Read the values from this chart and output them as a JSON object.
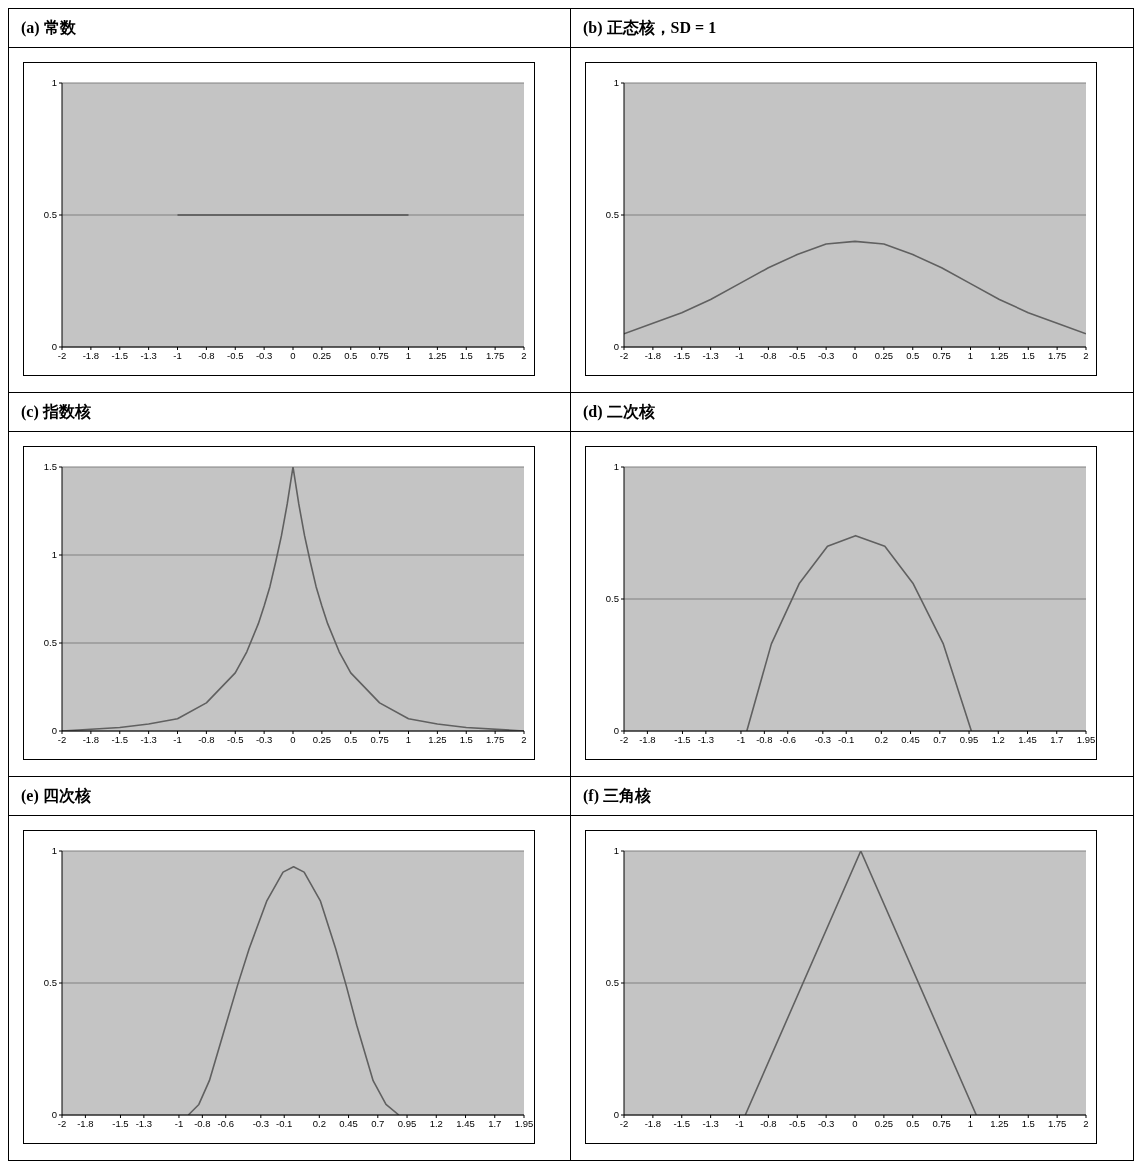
{
  "chart_data": [
    {
      "type": "line",
      "title": "(a) 常数",
      "grid": "y",
      "xlim": [
        -2,
        2
      ],
      "ylim": [
        0,
        1
      ],
      "yticks": [
        0,
        0.5,
        1
      ],
      "xticks": [
        -2,
        {
          "value": -1.75,
          "label": "-1.8"
        },
        -1.5,
        {
          "value": -1.25,
          "label": "-1.3"
        },
        -1,
        {
          "value": -0.75,
          "label": "-0.8"
        },
        -0.5,
        {
          "value": -0.25,
          "label": "-0.3"
        },
        0,
        0.25,
        0.5,
        0.75,
        1,
        1.25,
        1.5,
        1.75,
        2
      ],
      "series": [
        {
          "color": "#505050",
          "x": [
            -1,
            1
          ],
          "values": [
            0.5,
            0.5
          ]
        }
      ]
    },
    {
      "type": "line",
      "title": "(b) 正态核，SD = 1",
      "grid": "y",
      "xlim": [
        -2,
        2
      ],
      "ylim": [
        0,
        1
      ],
      "yticks": [
        0,
        0.5,
        1
      ],
      "xticks": [
        -2,
        {
          "value": -1.75,
          "label": "-1.8"
        },
        -1.5,
        {
          "value": -1.25,
          "label": "-1.3"
        },
        -1,
        {
          "value": -0.75,
          "label": "-0.8"
        },
        -0.5,
        {
          "value": -0.25,
          "label": "-0.3"
        },
        0,
        0.25,
        0.5,
        0.75,
        1,
        1.25,
        1.5,
        1.75,
        2
      ],
      "series": [
        {
          "color": "#606060",
          "x": [
            -2,
            -1.75,
            -1.5,
            -1.25,
            -1,
            -0.75,
            -0.5,
            -0.25,
            0,
            0.25,
            0.5,
            0.75,
            1,
            1.25,
            1.5,
            1.75,
            2
          ],
          "values": [
            0.05,
            0.09,
            0.13,
            0.18,
            0.24,
            0.3,
            0.35,
            0.39,
            0.4,
            0.39,
            0.35,
            0.3,
            0.24,
            0.18,
            0.13,
            0.09,
            0.05
          ]
        }
      ]
    },
    {
      "type": "line",
      "title": "(c) 指数核",
      "grid": "y",
      "xlim": [
        -2,
        2
      ],
      "ylim": [
        0,
        1.5
      ],
      "yticks": [
        0,
        0.5,
        1,
        1.5
      ],
      "xticks": [
        -2,
        {
          "value": -1.75,
          "label": "-1.8"
        },
        -1.5,
        {
          "value": -1.25,
          "label": "-1.3"
        },
        -1,
        {
          "value": -0.75,
          "label": "-0.8"
        },
        -0.5,
        {
          "value": -0.25,
          "label": "-0.3"
        },
        0,
        0.25,
        0.5,
        0.75,
        1,
        1.25,
        1.5,
        1.75,
        2
      ],
      "series": [
        {
          "color": "#606060",
          "x": [
            -2,
            -1.5,
            -1.25,
            -1,
            -0.75,
            -0.5,
            -0.4,
            -0.3,
            -0.25,
            -0.2,
            -0.15,
            -0.1,
            -0.05,
            0,
            0.05,
            0.1,
            0.15,
            0.2,
            0.25,
            0.3,
            0.4,
            0.5,
            0.75,
            1,
            1.25,
            1.5,
            2
          ],
          "values": [
            0,
            0.02,
            0.04,
            0.07,
            0.16,
            0.33,
            0.45,
            0.61,
            0.71,
            0.82,
            0.96,
            1.11,
            1.29,
            1.5,
            1.29,
            1.11,
            0.96,
            0.82,
            0.71,
            0.61,
            0.45,
            0.33,
            0.16,
            0.07,
            0.04,
            0.02,
            0
          ]
        }
      ]
    },
    {
      "type": "line",
      "title": "(d) 二次核",
      "grid": "y",
      "xlim": [
        -2,
        1.95
      ],
      "ylim": [
        0,
        1
      ],
      "yticks": [
        0,
        0.5,
        1
      ],
      "xticks": [
        -2,
        -1.8,
        -1.5,
        -1.3,
        -1,
        -0.8,
        -0.6,
        -0.3,
        -0.1,
        0.2,
        0.45,
        0.7,
        0.95,
        1.2,
        1.45,
        1.7,
        1.95
      ],
      "series": [
        {
          "color": "#606060",
          "x": [
            -0.95,
            -0.74,
            -0.5,
            -0.26,
            -0.02,
            0.23,
            0.47,
            0.73,
            0.97
          ],
          "values": [
            0,
            0.33,
            0.56,
            0.7,
            0.74,
            0.7,
            0.56,
            0.33,
            0
          ]
        }
      ]
    },
    {
      "type": "line",
      "title": "(e) 四次核",
      "grid": "y",
      "xlim": [
        -2,
        1.95
      ],
      "ylim": [
        0,
        1
      ],
      "yticks": [
        0,
        0.5,
        1
      ],
      "xticks": [
        -2,
        -1.8,
        -1.5,
        -1.3,
        -1,
        -0.8,
        -0.6,
        -0.3,
        -0.1,
        0.2,
        0.45,
        0.7,
        0.95,
        1.2,
        1.45,
        1.7,
        1.95
      ],
      "series": [
        {
          "color": "#606060",
          "x": [
            -0.92,
            -0.83,
            -0.74,
            -0.6,
            -0.5,
            -0.4,
            -0.25,
            -0.11,
            -0.02,
            0.07,
            0.21,
            0.34,
            0.43,
            0.52,
            0.66,
            0.77,
            0.88
          ],
          "values": [
            0,
            0.04,
            0.13,
            0.34,
            0.49,
            0.63,
            0.81,
            0.92,
            0.94,
            0.92,
            0.81,
            0.63,
            0.49,
            0.34,
            0.13,
            0.04,
            0
          ]
        }
      ]
    },
    {
      "type": "line",
      "title": "(f) 三角核",
      "grid": "y",
      "xlim": [
        -2,
        2
      ],
      "ylim": [
        0,
        1
      ],
      "yticks": [
        0,
        0.5,
        1
      ],
      "xticks": [
        -2,
        {
          "value": -1.75,
          "label": "-1.8"
        },
        -1.5,
        {
          "value": -1.25,
          "label": "-1.3"
        },
        -1,
        {
          "value": -0.75,
          "label": "-0.8"
        },
        -0.5,
        {
          "value": -0.25,
          "label": "-0.3"
        },
        0,
        0.25,
        0.5,
        0.75,
        1,
        1.25,
        1.5,
        1.75,
        2
      ],
      "series": [
        {
          "color": "#606060",
          "x": [
            -0.95,
            0.05,
            1.05
          ],
          "values": [
            0,
            1,
            0
          ]
        }
      ]
    }
  ]
}
